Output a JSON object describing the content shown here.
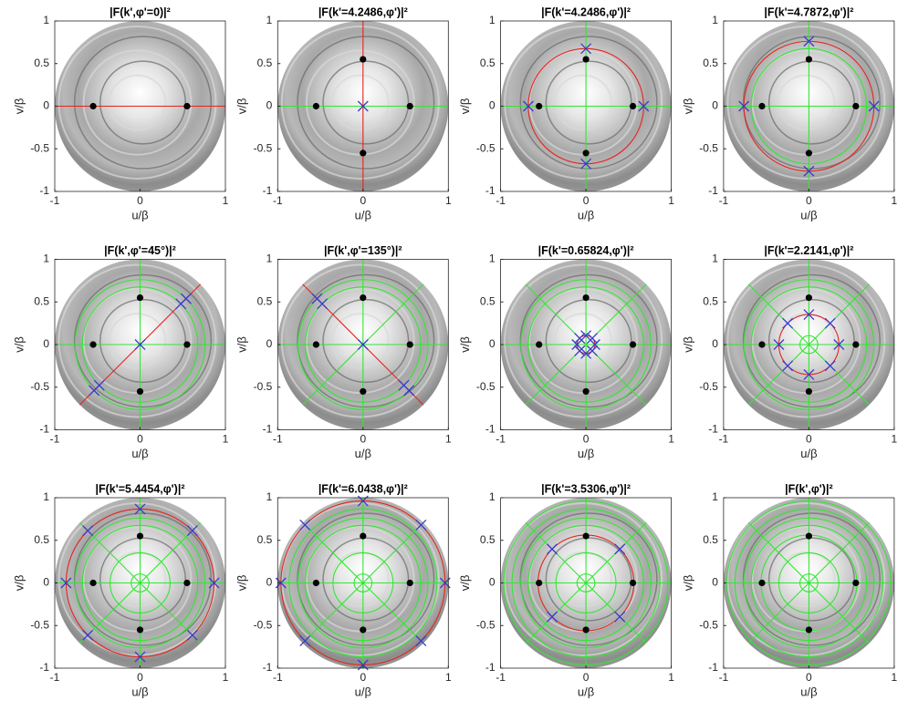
{
  "chart_data": [
    {
      "type": "scatter",
      "title": "|F(k',φ'=0)|²",
      "xlabel": "u/β",
      "ylabel": "v/β",
      "xlim": [
        -1,
        1
      ],
      "ylim": [
        -1,
        1
      ],
      "xticks": [
        -1,
        0,
        1
      ],
      "yticks": [
        -1,
        -0.5,
        0,
        0.5,
        1
      ],
      "dots": {
        "color": "#000000",
        "x": [
          -0.55,
          0.55
        ],
        "y": [
          0,
          0
        ]
      },
      "circles": [],
      "lines": [
        {
          "color": "#e8231a",
          "angles": [
            0
          ]
        }
      ]
    },
    {
      "type": "scatter",
      "title": "|F(k'=4.2486,φ')|²",
      "xlabel": "u/β",
      "ylabel": "v/β",
      "xlim": [
        -1,
        1
      ],
      "ylim": [
        -1,
        1
      ],
      "xticks": [
        -1,
        0,
        1
      ],
      "yticks": [
        -1,
        -0.5,
        0,
        0.5,
        1
      ],
      "dots": {
        "color": "#000000",
        "x": [
          -0.55,
          0.55,
          0,
          0
        ],
        "y": [
          0,
          0,
          0.55,
          -0.55
        ]
      },
      "crosses": {
        "color": "#3a3acc",
        "x": [
          0
        ],
        "y": [
          0
        ]
      },
      "circles": [],
      "lines": [
        {
          "color": "#33e633",
          "angles": [
            0
          ]
        },
        {
          "color": "#e8231a",
          "angles": [
            90
          ]
        }
      ]
    },
    {
      "type": "scatter",
      "title": "|F(k'=4.2486,φ')|²",
      "xlabel": "u/β",
      "ylabel": "v/β",
      "xlim": [
        -1,
        1
      ],
      "ylim": [
        -1,
        1
      ],
      "xticks": [
        -1,
        0,
        1
      ],
      "yticks": [
        -1,
        -0.5,
        0,
        0.5,
        1
      ],
      "dots": {
        "color": "#000000",
        "x": [
          -0.55,
          0.55,
          0,
          0
        ],
        "y": [
          0,
          0,
          0.55,
          -0.55
        ]
      },
      "crosses": {
        "color": "#3a3acc",
        "x": [
          -0.676,
          0.676,
          0,
          0
        ],
        "y": [
          0,
          0,
          0.676,
          -0.676
        ]
      },
      "circles": [
        {
          "color": "#e8231a",
          "radii": [
            0.676
          ]
        }
      ],
      "lines": [
        {
          "color": "#33e633",
          "angles": [
            0,
            90
          ]
        }
      ]
    },
    {
      "type": "scatter",
      "title": "|F(k'=4.7872,φ')|²",
      "xlabel": "u/β",
      "ylabel": "v/β",
      "xlim": [
        -1,
        1
      ],
      "ylim": [
        -1,
        1
      ],
      "xticks": [
        -1,
        0,
        1
      ],
      "yticks": [
        -1,
        -0.5,
        0,
        0.5,
        1
      ],
      "dots": {
        "color": "#000000",
        "x": [
          -0.55,
          0.55,
          0,
          0
        ],
        "y": [
          0,
          0,
          0.55,
          -0.55
        ]
      },
      "crosses": {
        "color": "#3a3acc",
        "x": [
          -0.762,
          0.762,
          0,
          0
        ],
        "y": [
          0,
          0,
          0.762,
          -0.762
        ]
      },
      "circles": [
        {
          "color": "#33e633",
          "radii": [
            0.676
          ]
        },
        {
          "color": "#e8231a",
          "radii": [
            0.762
          ]
        }
      ],
      "lines": [
        {
          "color": "#33e633",
          "angles": [
            0,
            90
          ]
        }
      ]
    },
    {
      "type": "scatter",
      "title": "|F(k',φ'=45°)|²",
      "xlabel": "u/β",
      "ylabel": "v/β",
      "xlim": [
        -1,
        1
      ],
      "ylim": [
        -1,
        1
      ],
      "xticks": [
        -1,
        0,
        1
      ],
      "yticks": [
        -1,
        -0.5,
        0,
        0.5,
        1
      ],
      "dots": {
        "color": "#000000",
        "x": [
          -0.55,
          0.55,
          0,
          0
        ],
        "y": [
          0,
          0,
          0.55,
          -0.55
        ]
      },
      "crosses": {
        "color": "#3a3acc",
        "x": [
          0,
          0.478,
          0.539,
          -0.478,
          -0.539
        ],
        "y": [
          0,
          0.478,
          0.539,
          -0.478,
          -0.539
        ]
      },
      "circles": [
        {
          "color": "#33e633",
          "radii": [
            0.676,
            0.762
          ]
        }
      ],
      "lines": [
        {
          "color": "#33e633",
          "angles": [
            0,
            90
          ]
        },
        {
          "color": "#e8231a",
          "angles": [
            45
          ]
        }
      ]
    },
    {
      "type": "scatter",
      "title": "|F(k',φ'=135°)|²",
      "xlabel": "u/β",
      "ylabel": "v/β",
      "xlim": [
        -1,
        1
      ],
      "ylim": [
        -1,
        1
      ],
      "xticks": [
        -1,
        0,
        1
      ],
      "yticks": [
        -1,
        -0.5,
        0,
        0.5,
        1
      ],
      "dots": {
        "color": "#000000",
        "x": [
          -0.55,
          0.55,
          0,
          0
        ],
        "y": [
          0,
          0,
          0.55,
          -0.55
        ]
      },
      "crosses": {
        "color": "#3a3acc",
        "x": [
          0,
          -0.478,
          -0.539,
          0.478,
          0.539
        ],
        "y": [
          0,
          0.478,
          0.539,
          -0.478,
          -0.539
        ]
      },
      "circles": [
        {
          "color": "#33e633",
          "radii": [
            0.676,
            0.762
          ]
        }
      ],
      "lines": [
        {
          "color": "#33e633",
          "angles": [
            0,
            90,
            45
          ]
        },
        {
          "color": "#e8231a",
          "angles": [
            135
          ]
        }
      ]
    },
    {
      "type": "scatter",
      "title": "|F(k'=0.65824,φ')|²",
      "xlabel": "u/β",
      "ylabel": "v/β",
      "xlim": [
        -1,
        1
      ],
      "ylim": [
        -1,
        1
      ],
      "xticks": [
        -1,
        0,
        1
      ],
      "yticks": [
        -1,
        -0.5,
        0,
        0.5,
        1
      ],
      "dots": {
        "color": "#000000",
        "x": [
          -0.55,
          0.55,
          0,
          0
        ],
        "y": [
          0,
          0,
          0.55,
          -0.55
        ]
      },
      "crosses": {
        "color": "#3a3acc",
        "x": [
          0.105,
          0.074,
          0,
          -0.074,
          -0.105,
          -0.074,
          0,
          0.074
        ],
        "y": [
          0,
          0.074,
          0.105,
          0.074,
          0,
          -0.074,
          -0.105,
          -0.074
        ]
      },
      "circles": [
        {
          "color": "#33e633",
          "radii": [
            0.676,
            0.762
          ]
        },
        {
          "color": "#e8231a",
          "radii": [
            0.105
          ]
        }
      ],
      "lines": [
        {
          "color": "#33e633",
          "angles": [
            0,
            90,
            45,
            135
          ]
        }
      ]
    },
    {
      "type": "scatter",
      "title": "|F(k'=2.2141,φ')|²",
      "xlabel": "u/β",
      "ylabel": "v/β",
      "xlim": [
        -1,
        1
      ],
      "ylim": [
        -1,
        1
      ],
      "xticks": [
        -1,
        0,
        1
      ],
      "yticks": [
        -1,
        -0.5,
        0,
        0.5,
        1
      ],
      "dots": {
        "color": "#000000",
        "x": [
          -0.55,
          0.55,
          0,
          0
        ],
        "y": [
          0,
          0,
          0.55,
          -0.55
        ]
      },
      "crosses": {
        "color": "#3a3acc",
        "x": [
          0.352,
          0.249,
          0,
          -0.249,
          -0.352,
          -0.249,
          0,
          0.249
        ],
        "y": [
          0,
          0.249,
          0.352,
          0.249,
          0,
          -0.249,
          -0.352,
          -0.249
        ]
      },
      "circles": [
        {
          "color": "#33e633",
          "radii": [
            0.105,
            0.676,
            0.762
          ]
        },
        {
          "color": "#e8231a",
          "radii": [
            0.352
          ]
        }
      ],
      "lines": [
        {
          "color": "#33e633",
          "angles": [
            0,
            90,
            45,
            135
          ]
        }
      ]
    },
    {
      "type": "scatter",
      "title": "|F(k'=5.4454,φ')|²",
      "xlabel": "u/β",
      "ylabel": "v/β",
      "xlim": [
        -1,
        1
      ],
      "ylim": [
        -1,
        1
      ],
      "xticks": [
        -1,
        0,
        1
      ],
      "yticks": [
        -1,
        -0.5,
        0,
        0.5,
        1
      ],
      "dots": {
        "color": "#000000",
        "x": [
          -0.55,
          0.55,
          0,
          0
        ],
        "y": [
          0,
          0,
          0.55,
          -0.55
        ]
      },
      "crosses": {
        "color": "#3a3acc",
        "x": [
          0.867,
          0.613,
          0,
          -0.613,
          -0.867,
          -0.613,
          0,
          0.613
        ],
        "y": [
          0,
          0.613,
          0.867,
          0.613,
          0,
          -0.613,
          -0.867,
          -0.613
        ]
      },
      "circles": [
        {
          "color": "#33e633",
          "radii": [
            0.105,
            0.352,
            0.676,
            0.762
          ]
        },
        {
          "color": "#e8231a",
          "radii": [
            0.867
          ]
        }
      ],
      "lines": [
        {
          "color": "#33e633",
          "angles": [
            0,
            90,
            45,
            135
          ]
        }
      ]
    },
    {
      "type": "scatter",
      "title": "|F(k'=6.0438,φ')|²",
      "xlabel": "u/β",
      "ylabel": "v/β",
      "xlim": [
        -1,
        1
      ],
      "ylim": [
        -1,
        1
      ],
      "xticks": [
        -1,
        0,
        1
      ],
      "yticks": [
        -1,
        -0.5,
        0,
        0.5,
        1
      ],
      "dots": {
        "color": "#000000",
        "x": [
          -0.55,
          0.55,
          0,
          0
        ],
        "y": [
          0,
          0,
          0.55,
          -0.55
        ]
      },
      "crosses": {
        "color": "#3a3acc",
        "x": [
          0.962,
          0.68,
          0,
          -0.68,
          -0.962,
          -0.68,
          0,
          0.68
        ],
        "y": [
          0,
          0.68,
          0.962,
          0.68,
          0,
          -0.68,
          -0.962,
          -0.68
        ]
      },
      "circles": [
        {
          "color": "#33e633",
          "radii": [
            0.105,
            0.352,
            0.676,
            0.762,
            0.867
          ]
        },
        {
          "color": "#e8231a",
          "radii": [
            0.962
          ]
        }
      ],
      "lines": [
        {
          "color": "#33e633",
          "angles": [
            0,
            90,
            45,
            135
          ]
        }
      ]
    },
    {
      "type": "scatter",
      "title": "|F(k'=3.5306,φ')|²",
      "xlabel": "u/β",
      "ylabel": "v/β",
      "xlim": [
        -1,
        1
      ],
      "ylim": [
        -1,
        1
      ],
      "xticks": [
        -1,
        0,
        1
      ],
      "yticks": [
        -1,
        -0.5,
        0,
        0.5,
        1
      ],
      "dots": {
        "color": "#000000",
        "x": [
          -0.55,
          0.55,
          0,
          0
        ],
        "y": [
          0,
          0,
          0.55,
          -0.55
        ]
      },
      "crosses": {
        "color": "#3a3acc",
        "x": [
          0.397,
          -0.397,
          -0.397,
          0.397
        ],
        "y": [
          0.397,
          0.397,
          -0.397,
          -0.397
        ]
      },
      "circles": [
        {
          "color": "#33e633",
          "radii": [
            0.105,
            0.352,
            0.676,
            0.762,
            0.867,
            0.962
          ]
        },
        {
          "color": "#e8231a",
          "radii": [
            0.562
          ]
        }
      ],
      "lines": [
        {
          "color": "#33e633",
          "angles": [
            0,
            90,
            45,
            135
          ]
        }
      ]
    },
    {
      "type": "scatter",
      "title": "|F(k',φ')|²",
      "xlabel": "u/β",
      "ylabel": "v/β",
      "xlim": [
        -1,
        1
      ],
      "ylim": [
        -1,
        1
      ],
      "xticks": [
        -1,
        0,
        1
      ],
      "yticks": [
        -1,
        -0.5,
        0,
        0.5,
        1
      ],
      "dots": {
        "color": "#000000",
        "x": [
          -0.55,
          0.55,
          0,
          0
        ],
        "y": [
          0,
          0,
          0.55,
          -0.55
        ]
      },
      "circles": [
        {
          "color": "#33e633",
          "radii": [
            0.105,
            0.352,
            0.562,
            0.676,
            0.762,
            0.867,
            0.962
          ]
        }
      ],
      "lines": [
        {
          "color": "#33e633",
          "angles": [
            0,
            90,
            45,
            135
          ]
        }
      ]
    }
  ]
}
